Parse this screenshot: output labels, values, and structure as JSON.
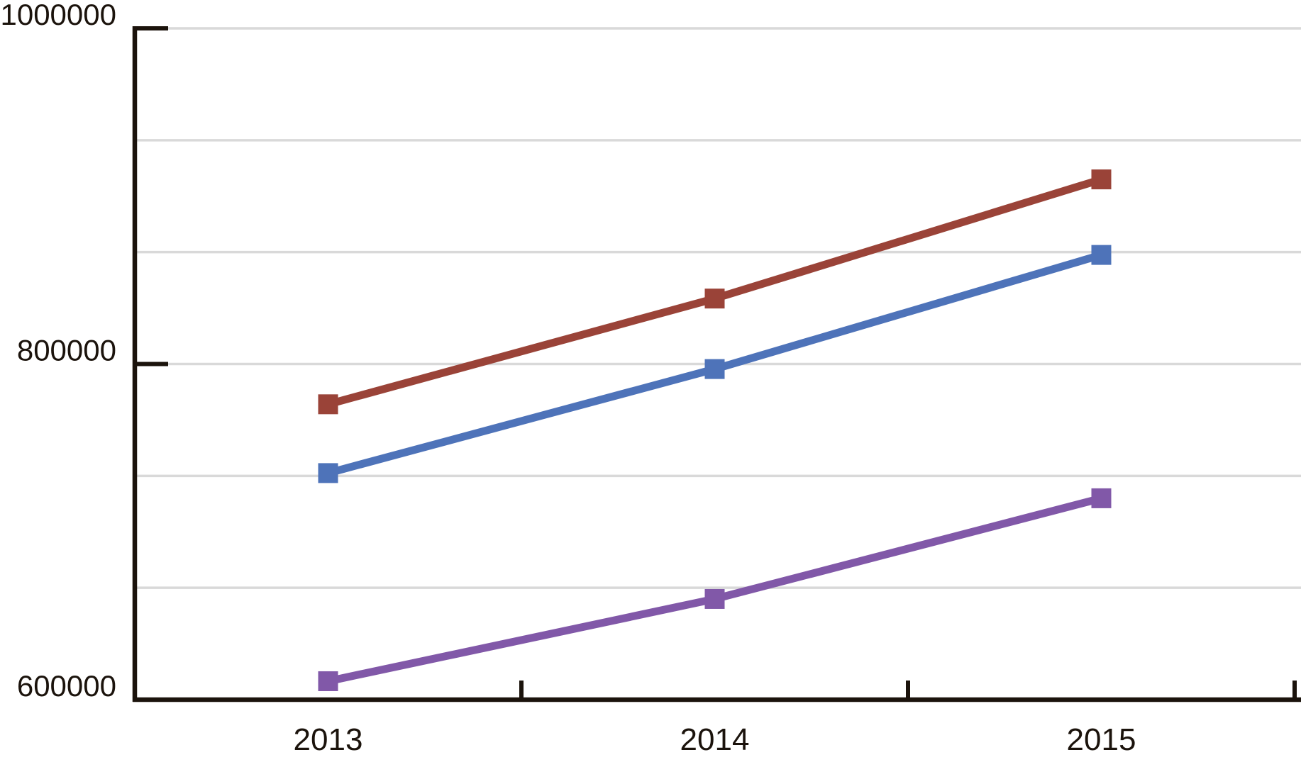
{
  "page": {
    "background_color": "#ffffff"
  },
  "chart_data": {
    "type": "line",
    "title": "",
    "xlabel": "",
    "ylabel": "",
    "categories": [
      "2013",
      "2014",
      "2015"
    ],
    "series": [
      {
        "name": "blue",
        "color": "#4e73b9",
        "marker": "square",
        "values": [
          735000,
          797000,
          865000
        ]
      },
      {
        "name": "red",
        "color": "#9a4338",
        "marker": "square",
        "values": [
          776000,
          839000,
          910000
        ]
      },
      {
        "name": "purple",
        "color": "#8158a8",
        "marker": "square",
        "values": [
          611000,
          660000,
          720000
        ]
      }
    ],
    "ylim": [
      600000,
      1000000
    ],
    "y_ticks": [
      {
        "label": "1000000",
        "value": 1000000
      },
      {
        "label": "800000",
        "value": 800000
      },
      {
        "label": "600000",
        "value": 600000
      }
    ],
    "gridlines": {
      "count": 7,
      "color": "#d9d9d9",
      "visible": true
    },
    "legend": "none",
    "axis_color": "#1b130c",
    "tick_label_color": "#1b130c"
  }
}
